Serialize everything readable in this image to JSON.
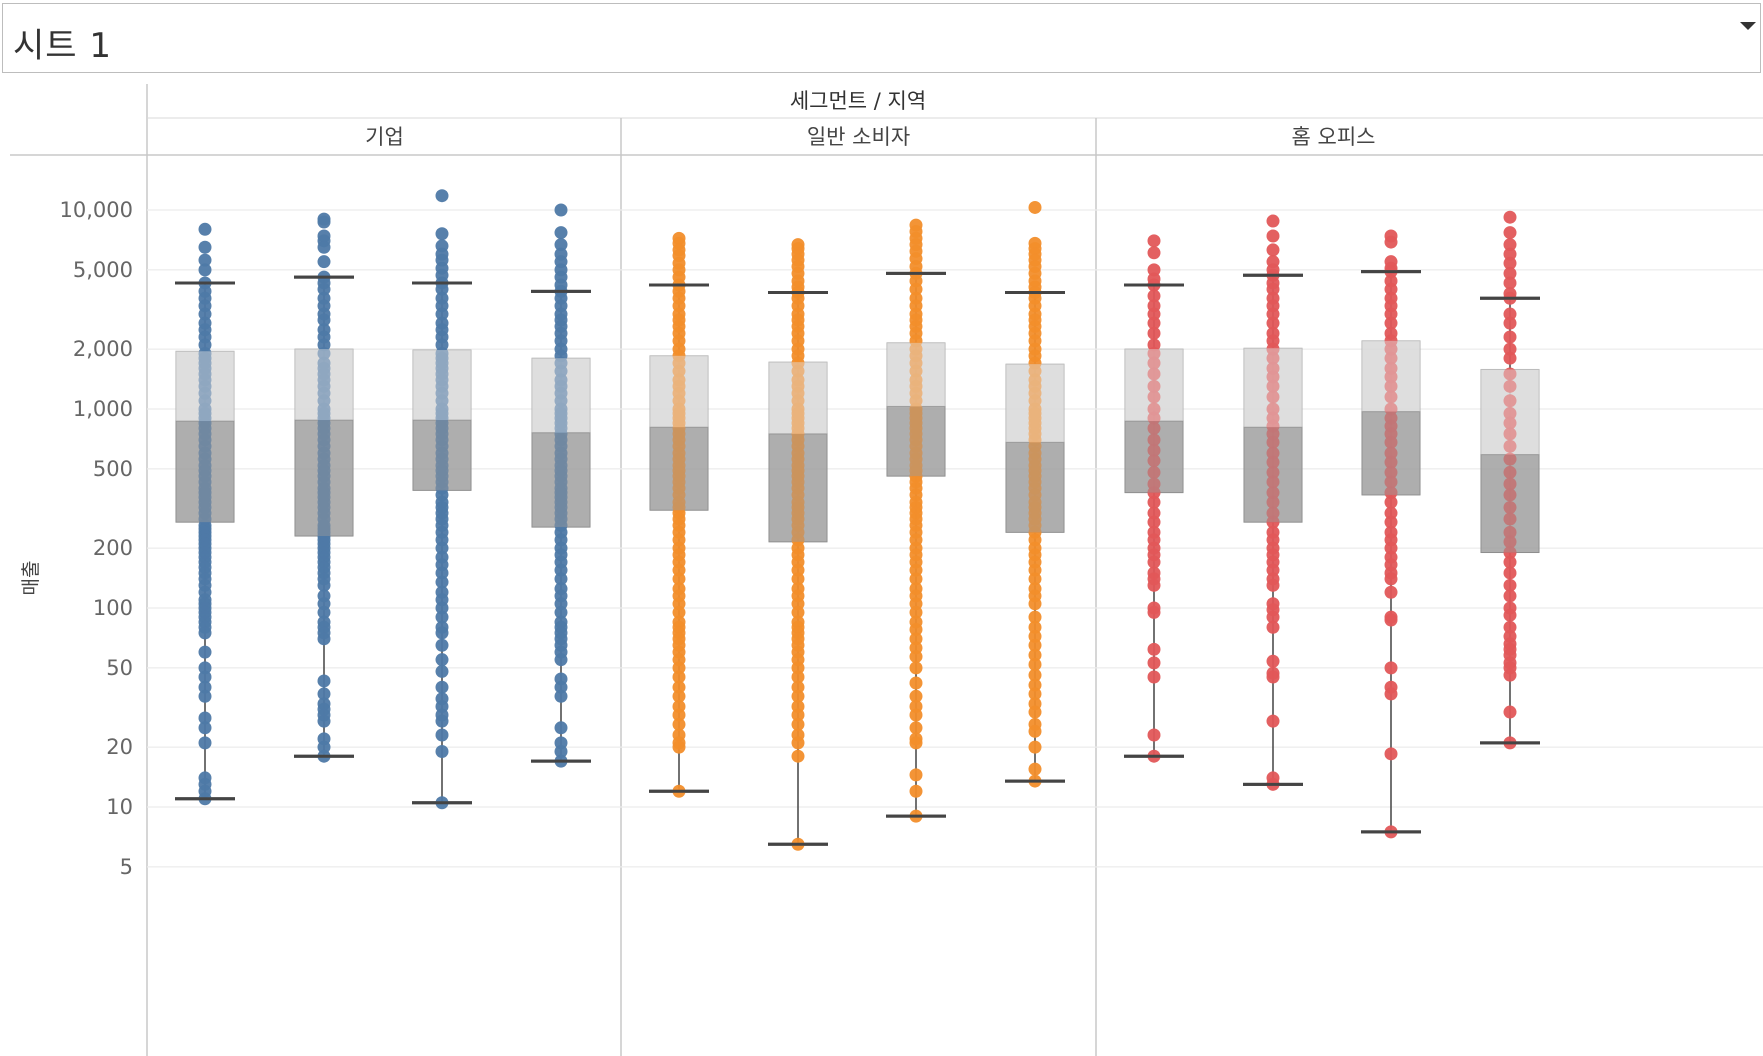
{
  "sheet": {
    "title": "시트 1"
  },
  "chart_data": {
    "type": "boxplot",
    "header_title": "세그먼트 / 지역",
    "ylabel": "매출",
    "yscale": "log",
    "ylim": [
      2.2,
      15000
    ],
    "yticks": [
      {
        "v": 10000,
        "label": "10,000"
      },
      {
        "v": 5000,
        "label": "5,000"
      },
      {
        "v": 2000,
        "label": "2,000"
      },
      {
        "v": 1000,
        "label": "1,000"
      },
      {
        "v": 500,
        "label": "500"
      },
      {
        "v": 200,
        "label": "200"
      },
      {
        "v": 100,
        "label": "100"
      },
      {
        "v": 50,
        "label": "50"
      },
      {
        "v": 20,
        "label": "20"
      },
      {
        "v": 10,
        "label": "10"
      },
      {
        "v": 5,
        "label": "5"
      }
    ],
    "grid": true,
    "legend": "none",
    "segments": [
      {
        "name": "기업",
        "color": "#4e79a7",
        "boxes": [
          {
            "lw": 11,
            "q1": 270,
            "med": 870,
            "q3": 1950,
            "uw": 4300,
            "points": [
              8000,
              6500,
              5600,
              5000,
              4300,
              3900,
              3600,
              3300,
              3000,
              2700,
              2500,
              2300,
              2100,
              1900,
              1800,
              1700,
              1600,
              1500,
              1400,
              1300,
              1200,
              1100,
              1000,
              950,
              900,
              850,
              800,
              750,
              700,
              650,
              600,
              560,
              520,
              490,
              460,
              430,
              400,
              380,
              360,
              340,
              320,
              300,
              280,
              260,
              250,
              240,
              230,
              220,
              210,
              200,
              190,
              180,
              170,
              160,
              150,
              140,
              130,
              120,
              110,
              105,
              100,
              95,
              90,
              85,
              80,
              75,
              60,
              50,
              45,
              40,
              36,
              28,
              25,
              21,
              14,
              13,
              12,
              11
            ]
          },
          {
            "lw": 18,
            "q1": 230,
            "med": 880,
            "q3": 2000,
            "uw": 4600,
            "points": [
              9000,
              8700,
              7400,
              7000,
              6500,
              5500,
              4600,
              4300,
              4000,
              3600,
              3300,
              3000,
              2800,
              2500,
              2300,
              2100,
              1900,
              1700,
              1600,
              1500,
              1400,
              1300,
              1200,
              1100,
              1000,
              950,
              900,
              850,
              800,
              750,
              700,
              650,
              600,
              560,
              520,
              490,
              460,
              430,
              400,
              380,
              360,
              340,
              320,
              300,
              280,
              260,
              250,
              240,
              230,
              220,
              210,
              200,
              190,
              180,
              170,
              160,
              150,
              140,
              130,
              115,
              105,
              95,
              85,
              80,
              75,
              70,
              43,
              37,
              33,
              31,
              29,
              27,
              22,
              20,
              18
            ]
          },
          {
            "lw": 10.5,
            "q1": 390,
            "med": 880,
            "q3": 1980,
            "uw": 4300,
            "points": [
              11800,
              7600,
              6600,
              6000,
              5600,
              5100,
              4700,
              4300,
              4000,
              3600,
              3300,
              3000,
              2700,
              2500,
              2300,
              2100,
              1900,
              1800,
              1700,
              1600,
              1500,
              1400,
              1300,
              1200,
              1100,
              1000,
              950,
              900,
              850,
              800,
              750,
              700,
              650,
              600,
              560,
              520,
              490,
              460,
              430,
              400,
              370,
              340,
              320,
              300,
              280,
              260,
              240,
              220,
              200,
              180,
              165,
              150,
              135,
              120,
              110,
              100,
              90,
              80,
              75,
              65,
              55,
              48,
              40,
              35,
              32,
              29,
              27,
              23,
              19,
              10.5
            ]
          },
          {
            "lw": 17,
            "q1": 255,
            "med": 760,
            "q3": 1800,
            "uw": 3900,
            "points": [
              10000,
              7700,
              6700,
              6000,
              5500,
              5000,
              4600,
              4200,
              3900,
              3600,
              3300,
              3000,
              2800,
              2600,
              2400,
              2200,
              2000,
              1850,
              1700,
              1550,
              1400,
              1300,
              1200,
              1100,
              1000,
              950,
              900,
              850,
              800,
              750,
              700,
              650,
              600,
              560,
              520,
              490,
              460,
              430,
              400,
              380,
              360,
              340,
              320,
              300,
              280,
              260,
              240,
              220,
              200,
              185,
              170,
              155,
              140,
              125,
              115,
              105,
              95,
              85,
              80,
              75,
              70,
              65,
              60,
              55,
              44,
              40,
              36,
              25,
              21,
              19,
              17
            ]
          }
        ]
      },
      {
        "name": "일반 소비자",
        "color": "#f28e2b",
        "boxes": [
          {
            "lw": 12,
            "q1": 310,
            "med": 810,
            "q3": 1850,
            "uw": 4200,
            "points": [
              7200,
              6800,
              6300,
              5900,
              5400,
              5000,
              4600,
              4200,
              3900,
              3600,
              3300,
              3000,
              2800,
              2600,
              2400,
              2200,
              2000,
              1850,
              1700,
              1550,
              1400,
              1300,
              1200,
              1100,
              1000,
              950,
              900,
              850,
              800,
              750,
              700,
              650,
              600,
              560,
              520,
              490,
              460,
              430,
              400,
              370,
              340,
              320,
              300,
              280,
              260,
              240,
              220,
              200,
              185,
              170,
              155,
              140,
              125,
              115,
              105,
              95,
              85,
              80,
              75,
              70,
              65,
              60,
              55,
              50,
              45,
              40,
              36,
              32,
              29,
              26,
              23,
              21,
              20,
              12
            ]
          },
          {
            "lw": 6.5,
            "q1": 215,
            "med": 750,
            "q3": 1720,
            "uw": 3850,
            "points": [
              6700,
              6400,
              6000,
              5600,
              5200,
              4800,
              4400,
              4100,
              3850,
              3600,
              3300,
              3000,
              2800,
              2600,
              2400,
              2200,
              2000,
              1850,
              1700,
              1550,
              1400,
              1300,
              1200,
              1100,
              1000,
              950,
              900,
              850,
              800,
              750,
              700,
              650,
              600,
              560,
              520,
              490,
              460,
              430,
              400,
              370,
              340,
              320,
              300,
              280,
              260,
              240,
              220,
              200,
              185,
              170,
              155,
              140,
              125,
              115,
              105,
              95,
              85,
              80,
              75,
              70,
              65,
              60,
              55,
              50,
              45,
              40,
              36,
              32,
              29,
              26,
              23,
              21,
              18,
              6.5
            ]
          },
          {
            "lw": 9,
            "q1": 460,
            "med": 1030,
            "q3": 2150,
            "uw": 4800,
            "points": [
              8400,
              7800,
              7200,
              6700,
              6200,
              5700,
              5200,
              4800,
              4400,
              4000,
              3600,
              3300,
              3000,
              2800,
              2600,
              2400,
              2200,
              2000,
              1850,
              1700,
              1550,
              1400,
              1300,
              1200,
              1100,
              1000,
              950,
              900,
              850,
              800,
              750,
              700,
              650,
              600,
              560,
              520,
              490,
              460,
              430,
              400,
              370,
              340,
              320,
              300,
              280,
              260,
              240,
              220,
              200,
              185,
              170,
              155,
              140,
              125,
              115,
              105,
              95,
              85,
              78,
              70,
              63,
              57,
              50,
              42,
              36,
              32,
              29,
              25,
              22,
              21,
              14.5,
              12,
              9
            ]
          },
          {
            "lw": 13.5,
            "q1": 240,
            "med": 680,
            "q3": 1680,
            "uw": 3850,
            "points": [
              10300,
              6800,
              6400,
              6000,
              5600,
              5200,
              4800,
              4400,
              4100,
              3850,
              3600,
              3300,
              3000,
              2800,
              2600,
              2400,
              2200,
              2000,
              1850,
              1700,
              1550,
              1400,
              1300,
              1200,
              1100,
              1000,
              950,
              900,
              850,
              800,
              750,
              700,
              650,
              600,
              560,
              520,
              490,
              460,
              430,
              400,
              370,
              340,
              320,
              300,
              280,
              260,
              240,
              220,
              200,
              185,
              170,
              155,
              140,
              125,
              115,
              105,
              90,
              80,
              72,
              65,
              58,
              52,
              46,
              41,
              37,
              33,
              30,
              26,
              24,
              20,
              15.5,
              13.5
            ]
          }
        ]
      },
      {
        "name": "홈 오피스",
        "color": "#e15759",
        "boxes": [
          {
            "lw": 18,
            "q1": 380,
            "med": 870,
            "q3": 2000,
            "uw": 4200,
            "points": [
              7000,
              6100,
              5000,
              4500,
              4200,
              3700,
              3300,
              3000,
              2700,
              2400,
              2100,
              1900,
              1700,
              1500,
              1300,
              1150,
              1000,
              900,
              800,
              700,
              620,
              550,
              480,
              420,
              380,
              340,
              300,
              270,
              240,
              220,
              200,
              185,
              170,
              150,
              140,
              130,
              100,
              95,
              62,
              53,
              45,
              23,
              18
            ]
          },
          {
            "lw": 13,
            "q1": 270,
            "med": 810,
            "q3": 2020,
            "uw": 4700,
            "points": [
              8800,
              7400,
              6300,
              5500,
              5000,
              4700,
              4300,
              4000,
              3600,
              3300,
              3000,
              2700,
              2400,
              2200,
              2000,
              1800,
              1600,
              1450,
              1300,
              1150,
              1000,
              900,
              820,
              750,
              680,
              600,
              540,
              480,
              430,
              380,
              340,
              300,
              270,
              240,
              220,
              200,
              185,
              170,
              155,
              140,
              130,
              105,
              98,
              90,
              80,
              54,
              47,
              45,
              27,
              14,
              13
            ]
          },
          {
            "lw": 7.5,
            "q1": 370,
            "med": 970,
            "q3": 2200,
            "uw": 4900,
            "points": [
              7400,
              6900,
              5500,
              5100,
              4900,
              4400,
              4000,
              3600,
              3300,
              3000,
              2700,
              2400,
              2200,
              2000,
              1800,
              1600,
              1450,
              1300,
              1150,
              1000,
              900,
              820,
              750,
              680,
              600,
              540,
              480,
              430,
              380,
              340,
              300,
              270,
              240,
              220,
              200,
              180,
              165,
              150,
              140,
              120,
              90,
              87,
              50,
              40,
              37,
              18.5,
              7.5
            ]
          },
          {
            "lw": 21,
            "q1": 190,
            "med": 590,
            "q3": 1580,
            "uw": 3600,
            "points": [
              9200,
              7700,
              6700,
              6000,
              5400,
              4800,
              4300,
              3800,
              3600,
              3000,
              2700,
              2300,
              2000,
              1800,
              1500,
              1300,
              1100,
              950,
              850,
              750,
              650,
              560,
              480,
              420,
              370,
              320,
              280,
              240,
              215,
              190,
              170,
              150,
              130,
              115,
              100,
              92,
              80,
              72,
              66,
              62,
              58,
              53,
              50,
              46,
              30,
              21
            ]
          }
        ]
      }
    ]
  }
}
